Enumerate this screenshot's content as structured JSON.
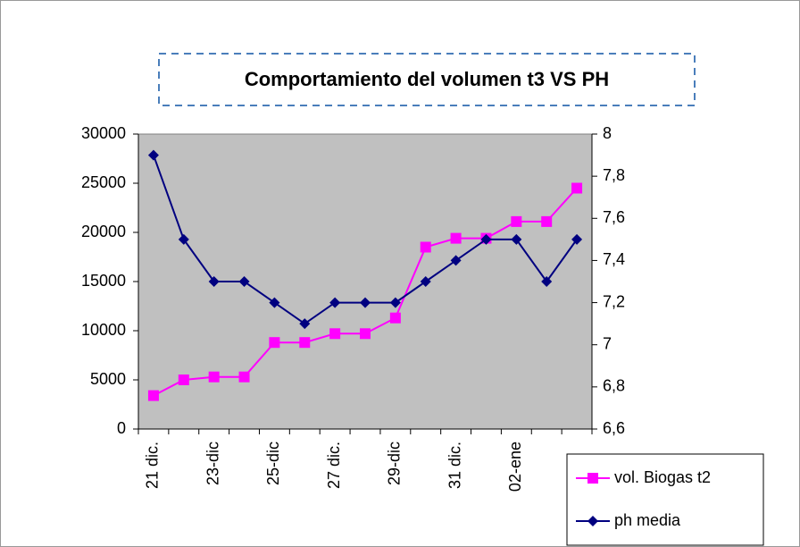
{
  "chart_data": {
    "type": "line",
    "title": "Comportamiento del volumen t3 VS PH",
    "categories": [
      "21 dic.",
      null,
      "23-dic",
      null,
      "25-dic",
      null,
      "27 dic.",
      null,
      "29-dic",
      null,
      "31 dic.",
      null,
      "02-ene",
      null,
      null
    ],
    "series": [
      {
        "name": "vol. Biogas t2",
        "color": "#ff00ff",
        "marker": "square",
        "values": [
          3400,
          5000,
          5300,
          5300,
          8800,
          8800,
          9700,
          9700,
          11300,
          18500,
          19400,
          19400,
          21100,
          21100,
          24500
        ]
      },
      {
        "name": "ph media",
        "color": "#000080",
        "marker": "diamond",
        "axis": "y2",
        "values": [
          7.9,
          7.5,
          7.3,
          7.3,
          7.2,
          7.1,
          7.2,
          7.2,
          7.2,
          7.3,
          7.4,
          7.5,
          7.5,
          7.3,
          7.5
        ]
      }
    ],
    "ylim": [
      0,
      30000
    ],
    "yticks": [
      0,
      5000,
      10000,
      15000,
      20000,
      25000,
      30000
    ],
    "y2lim": [
      6.6,
      8
    ],
    "y2ticks": [
      {
        "value": 6.6,
        "label": "6,6"
      },
      {
        "value": 6.8,
        "label": "6,8"
      },
      7,
      {
        "value": 7.2,
        "label": "7,2"
      },
      {
        "value": 7.4,
        "label": "7,4"
      },
      {
        "value": 7.6,
        "label": "7,6"
      },
      {
        "value": 7.8,
        "label": "7,8"
      },
      8
    ],
    "plot_background": "#c0c0c0"
  }
}
